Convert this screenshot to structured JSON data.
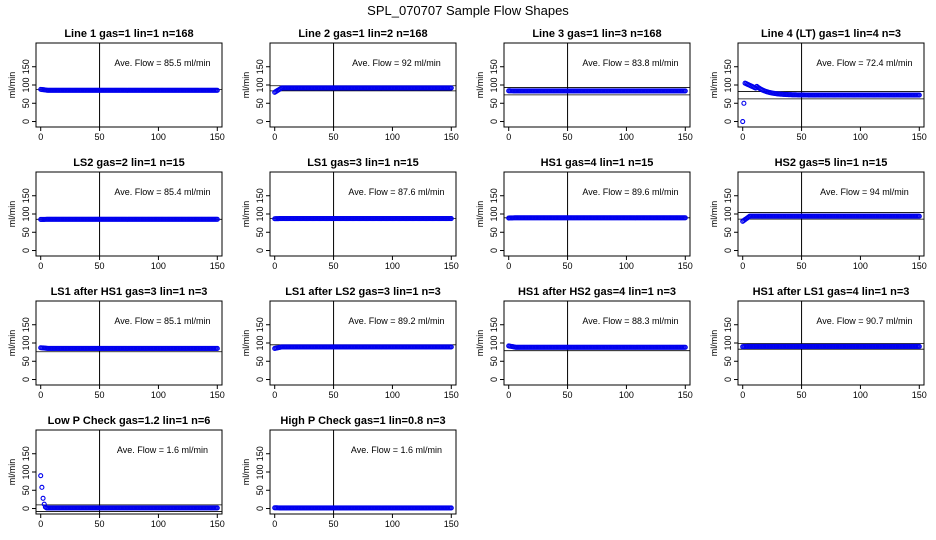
{
  "title": "SPL_070707  Sample Flow Shapes",
  "chart_data": {
    "type": "scatter",
    "layout": {
      "rows": 4,
      "cols": 4
    },
    "xticks": [
      0,
      50,
      100,
      150
    ],
    "yticks": [
      0,
      50,
      100,
      150
    ],
    "xlim": [
      -4,
      154
    ],
    "ylim": [
      -15,
      215
    ],
    "ylabel": "ml/min",
    "annotation_template": "Ave. Flow =  {v}  ml/min",
    "reference_x": 50,
    "marker_color": "#0000ee",
    "panels": [
      {
        "title": "Line 1 gas=1 lin=1 n=168",
        "ave": "85.5",
        "hlines": [
          88
        ],
        "shape": {
          "type": "flat",
          "level": 85.5,
          "start": 88
        }
      },
      {
        "title": "Line 2 gas=1 lin=2 n=168",
        "ave": "92",
        "hlines": [
          98,
          84
        ],
        "shape": {
          "type": "flat",
          "level": 92,
          "start": 80
        }
      },
      {
        "title": "Line 3 gas=1 lin=3 n=168",
        "ave": "83.8",
        "hlines": [
          93,
          73
        ],
        "shape": {
          "type": "flat",
          "level": 83.8,
          "start": 84
        }
      },
      {
        "title": "Line 4 (LT) gas=1 lin=4 n=3",
        "ave": "72.4",
        "hlines": [
          82,
          62
        ],
        "shape": {
          "type": "peak",
          "level": 72.4,
          "peak": 105,
          "early": [
            0,
            50
          ]
        }
      },
      {
        "title": "LS2 gas=2 lin=1 n=15",
        "ave": "85.4",
        "hlines": [
          85.4
        ],
        "shape": {
          "type": "flat",
          "level": 85.4,
          "start": 85
        }
      },
      {
        "title": "LS1 gas=3 lin=1 n=15",
        "ave": "87.6",
        "hlines": [
          87.6
        ],
        "shape": {
          "type": "flat",
          "level": 87.6,
          "start": 87
        }
      },
      {
        "title": "HS1 gas=4 lin=1 n=15",
        "ave": "89.6",
        "hlines": [
          89.6
        ],
        "shape": {
          "type": "flat",
          "level": 89.6,
          "start": 89
        }
      },
      {
        "title": "HS2 gas=5 lin=1 n=15",
        "ave": "94",
        "hlines": [
          104,
          86
        ],
        "shape": {
          "type": "flat",
          "level": 94,
          "start": 80
        }
      },
      {
        "title": "LS1 after HS1 gas=3 lin=1 n=3",
        "ave": "85.1",
        "hlines": [
          76
        ],
        "shape": {
          "type": "flat",
          "level": 85.1,
          "start": 87
        }
      },
      {
        "title": "LS1 after LS2 gas=3 lin=1 n=3",
        "ave": "89.2",
        "hlines": [
          95
        ],
        "shape": {
          "type": "flat",
          "level": 89.2,
          "start": 85
        }
      },
      {
        "title": "HS1 after HS2 gas=4 lin=1 n=3",
        "ave": "88.3",
        "hlines": [
          79
        ],
        "shape": {
          "type": "flat",
          "level": 88.3,
          "start": 92
        }
      },
      {
        "title": "HS1 after LS1 gas=4 lin=1 n=3",
        "ave": "90.7",
        "hlines": [
          99,
          83
        ],
        "shape": {
          "type": "flat",
          "level": 90.7,
          "start": 90
        }
      },
      {
        "title": "Low P Check gas=1.2 lin=1 n=6",
        "ave": "1.6",
        "hlines": [
          10,
          -8
        ],
        "shape": {
          "type": "decay",
          "level": 1.6,
          "early": [
            90,
            58,
            28,
            12,
            4
          ]
        }
      },
      {
        "title": "High P Check gas=1 lin=0.8 n=3",
        "ave": "1.6",
        "hlines": [],
        "shape": {
          "type": "flat",
          "level": 1.6,
          "start": 2
        }
      }
    ]
  }
}
